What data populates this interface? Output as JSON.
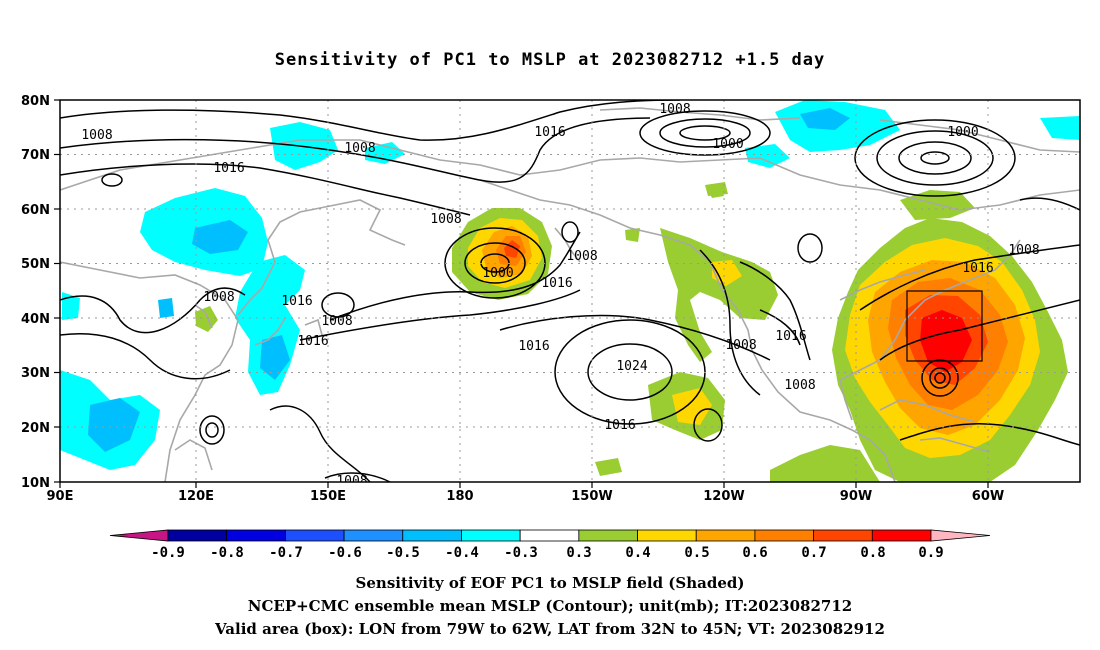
{
  "title": "Sensitivity of PC1 to MSLP at 2023082712 +1.5 day",
  "map": {
    "lat_labels": [
      "80N",
      "70N",
      "60N",
      "50N",
      "40N",
      "30N",
      "20N",
      "10N"
    ],
    "lon_labels": [
      "90E",
      "120E",
      "150E",
      "180",
      "150W",
      "120W",
      "90W",
      "60W"
    ],
    "contour_labels": [
      {
        "id": "c1",
        "text": "1008"
      },
      {
        "id": "c2",
        "text": "1008"
      },
      {
        "id": "c3",
        "text": "1016"
      },
      {
        "id": "c4",
        "text": "1008"
      },
      {
        "id": "c5",
        "text": "1000"
      },
      {
        "id": "c6",
        "text": "1016"
      },
      {
        "id": "c7",
        "text": "1000"
      },
      {
        "id": "c8",
        "text": "1008"
      },
      {
        "id": "c9",
        "text": "1008"
      },
      {
        "id": "c10",
        "text": "1000"
      },
      {
        "id": "c11",
        "text": "1016"
      },
      {
        "id": "c12",
        "text": "1008"
      },
      {
        "id": "c13",
        "text": "1016"
      },
      {
        "id": "c14",
        "text": "1008"
      },
      {
        "id": "c15",
        "text": "1016"
      },
      {
        "id": "c16",
        "text": "1016"
      },
      {
        "id": "c17",
        "text": "1024"
      },
      {
        "id": "c18",
        "text": "1008"
      },
      {
        "id": "c19",
        "text": "1016"
      },
      {
        "id": "c20",
        "text": "1008"
      },
      {
        "id": "c21",
        "text": "1016"
      },
      {
        "id": "c22",
        "text": "1008"
      },
      {
        "id": "c23",
        "text": "1016"
      },
      {
        "id": "c24",
        "text": "1008"
      }
    ]
  },
  "colorbar": {
    "labels": [
      "-0.9",
      "-0.8",
      "-0.7",
      "-0.6",
      "-0.5",
      "-0.4",
      "-0.3",
      "0.3",
      "0.4",
      "0.5",
      "0.6",
      "0.7",
      "0.8",
      "0.9"
    ],
    "colors": [
      "#c71585",
      "#0000a0",
      "#0000e0",
      "#1e4fff",
      "#1e90ff",
      "#00bfff",
      "#00ffff",
      "#ffffff",
      "#9acd32",
      "#ffd700",
      "#ffa500",
      "#ff7f00",
      "#ff4500",
      "#ff0000",
      "#ffb6c1"
    ]
  },
  "captions": {
    "line1": "Sensitivity of EOF PC1 to MSLP field (Shaded)",
    "line2": "NCEP+CMC ensemble mean MSLP (Contour); unit(mb); IT:2023082712",
    "line3": "Valid area (box): LON from 79W to 62W, LAT from 32N to 45N; VT: 2023082912"
  }
}
